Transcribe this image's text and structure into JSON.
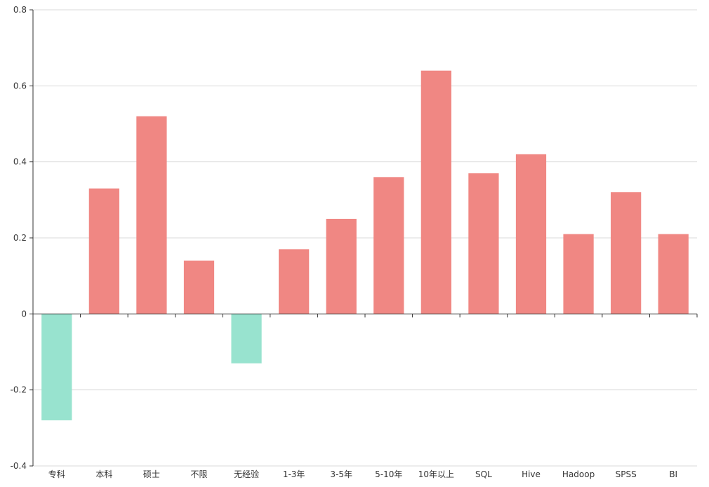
{
  "chart_data": {
    "type": "bar",
    "categories": [
      "专科",
      "本科",
      "硕士",
      "不限",
      "无经验",
      "1-3年",
      "3-5年",
      "5-10年",
      "10年以上",
      "SQL",
      "Hive",
      "Hadoop",
      "SPSS",
      "BI"
    ],
    "values": [
      -0.28,
      0.33,
      0.52,
      0.14,
      -0.13,
      0.17,
      0.25,
      0.36,
      0.64,
      0.37,
      0.42,
      0.21,
      0.32,
      0.21
    ],
    "ylim": [
      -0.4,
      0.8
    ],
    "yticks": [
      -0.4,
      -0.2,
      0,
      0.2,
      0.4,
      0.6,
      0.8
    ],
    "ytick_labels": [
      "-0.4",
      "-0.2",
      "0",
      "0.2",
      "0.4",
      "0.6",
      "0.8"
    ],
    "grid": true,
    "title": "",
    "xlabel": "",
    "ylabel": ""
  },
  "colors": {
    "positive": "#f08783",
    "negative": "#98e3cf",
    "grid": "#d9d9d9",
    "axis": "#333333"
  }
}
